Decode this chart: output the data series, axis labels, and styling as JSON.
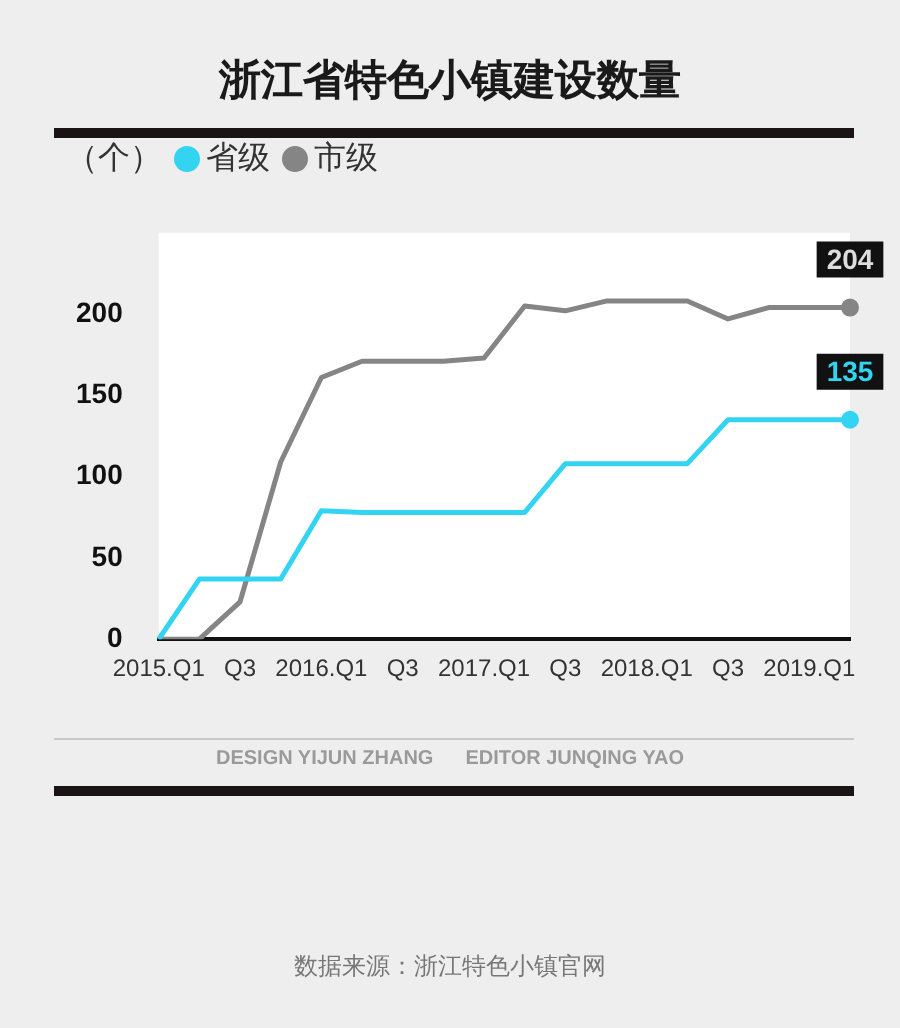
{
  "chart_data": {
    "type": "line",
    "title": "浙江省特色小镇建设数量",
    "ylabel": "（个）",
    "categories": [
      "2015.Q1",
      null,
      "Q3",
      null,
      "2016.Q1",
      null,
      "Q3",
      null,
      "2017.Q1",
      null,
      "Q3",
      null,
      "2018.Q1",
      null,
      "Q3",
      null,
      "2019.Q1",
      null
    ],
    "series": [
      {
        "name": "省级",
        "color": "#33d4f2",
        "values": [
          0,
          37,
          37,
          37,
          79,
          78,
          78,
          78,
          78,
          78,
          108,
          108,
          108,
          108,
          135,
          135,
          135,
          135
        ],
        "value_labels": [
          null,
          null,
          null,
          null,
          null,
          null,
          null,
          null,
          null,
          null,
          null,
          null,
          null,
          null,
          null,
          null,
          null,
          "135"
        ]
      },
      {
        "name": "市级",
        "color": "#858585",
        "values": [
          0,
          0,
          23,
          109,
          161,
          171,
          171,
          171,
          173,
          205,
          202,
          208,
          208,
          208,
          197,
          204,
          204,
          204
        ],
        "value_labels": [
          null,
          null,
          null,
          null,
          null,
          null,
          null,
          null,
          null,
          null,
          null,
          null,
          null,
          null,
          null,
          null,
          null,
          "204"
        ]
      }
    ],
    "ylim": [
      0,
      250
    ],
    "yticks": [
      0,
      50,
      100,
      150,
      200
    ],
    "grid": false,
    "legend": "top left",
    "line_style": "solid",
    "annotations": [
      "DESIGN YIJUN ZHANG",
      "EDITOR JUNQING YAO",
      "数据来源：浙江特色小镇官网"
    ]
  }
}
